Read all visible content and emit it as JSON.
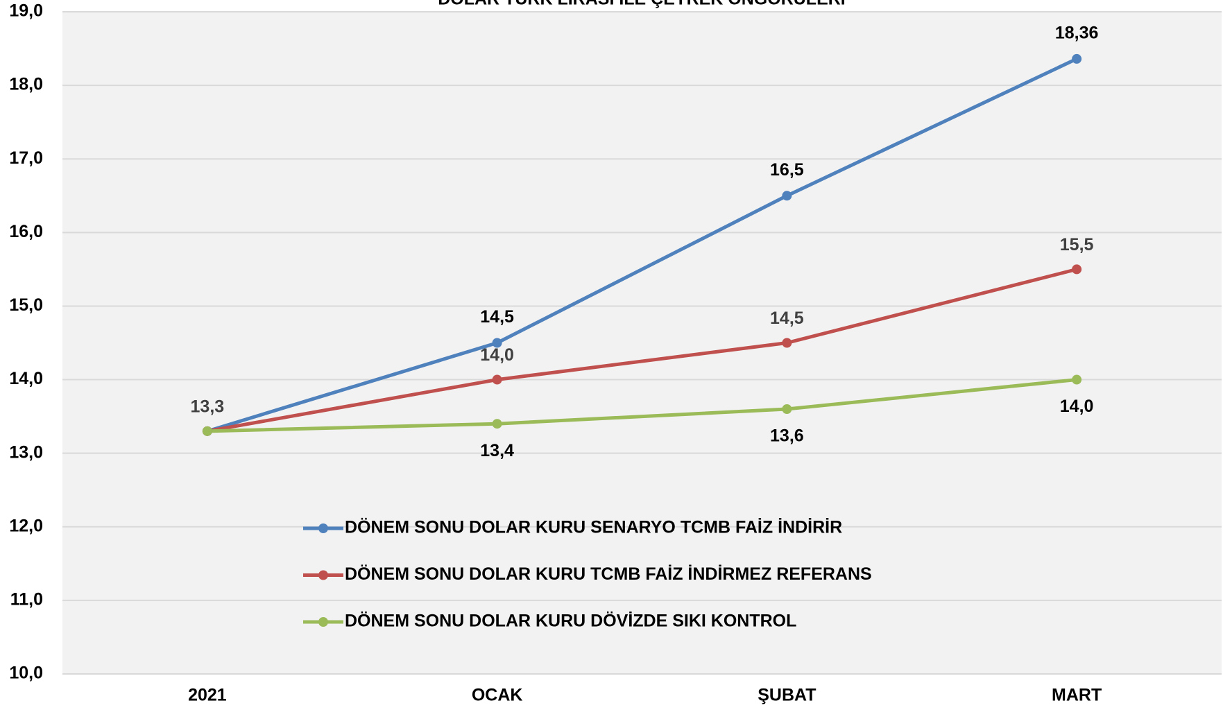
{
  "chart_data": {
    "type": "line",
    "title": "DOLAR TÜRK LİRASI İLE ÇEYREK ÖNGÖRÜLERİ",
    "categories": [
      "2021",
      "OCAK",
      "ŞUBAT",
      "MART"
    ],
    "series": [
      {
        "name": "DÖNEM SONU DOLAR KURU SENARYO TCMB FAİZ İNDİRİR",
        "color": "#4f81bd",
        "values": [
          13.3,
          14.5,
          16.5,
          18.36
        ],
        "value_labels": [
          null,
          "14,5",
          "16,5",
          "18,36"
        ]
      },
      {
        "name": "DÖNEM SONU DOLAR KURU TCMB FAİZ İNDİRMEZ REFERANS",
        "color": "#c0504d",
        "values": [
          13.3,
          14.0,
          14.5,
          15.5
        ],
        "value_labels": [
          "13,3",
          "14,0",
          "14,5",
          "15,5"
        ]
      },
      {
        "name": "DÖNEM SONU DOLAR KURU DÖVİZDE SIKI KONTROL",
        "color": "#9bbb59",
        "values": [
          13.3,
          13.4,
          13.6,
          14.0
        ],
        "value_labels": [
          null,
          "13,4",
          "13,6",
          "14,0"
        ]
      }
    ],
    "ylim": [
      10,
      19
    ],
    "yticks": [
      {
        "value": 10,
        "label": "10,0"
      },
      {
        "value": 11,
        "label": "11,0"
      },
      {
        "value": 12,
        "label": "12,0"
      },
      {
        "value": 13,
        "label": "13,0"
      },
      {
        "value": 14,
        "label": "14,0"
      },
      {
        "value": 15,
        "label": "15,0"
      },
      {
        "value": 16,
        "label": "16,0"
      },
      {
        "value": 17,
        "label": "17,0"
      },
      {
        "value": 18,
        "label": "18,0"
      },
      {
        "value": 19,
        "label": "19,0"
      }
    ],
    "grid": true
  }
}
